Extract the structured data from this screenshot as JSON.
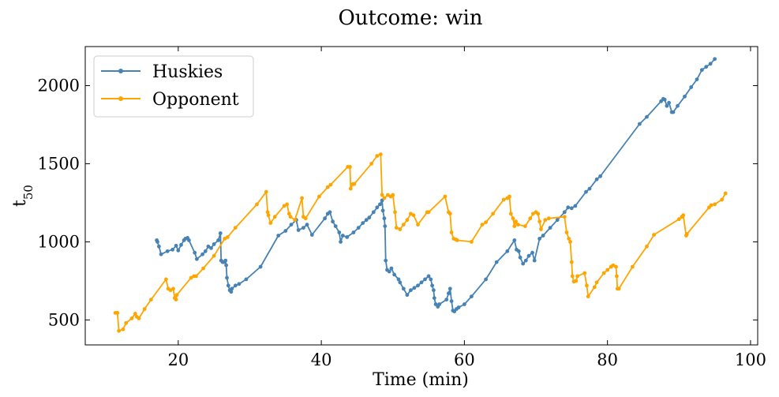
{
  "chart_data": {
    "type": "line",
    "title": "Outcome: win",
    "xlabel": "Time (min)",
    "ylabel_base": "t",
    "ylabel_sub": "50",
    "xlim": [
      7,
      101
    ],
    "ylim": [
      340,
      2250
    ],
    "xticks": [
      20,
      40,
      60,
      80,
      100
    ],
    "yticks": [
      500,
      1000,
      1500,
      2000
    ],
    "legend_position": "upper left",
    "series": [
      {
        "name": "Huskies",
        "color": "#4682b4",
        "points": [
          [
            17.0,
            1010
          ],
          [
            17.1,
            1000
          ],
          [
            17.3,
            970
          ],
          [
            17.6,
            920
          ],
          [
            18.5,
            940
          ],
          [
            19.2,
            950
          ],
          [
            19.7,
            975
          ],
          [
            20.0,
            945
          ],
          [
            20.4,
            980
          ],
          [
            20.8,
            1010
          ],
          [
            21.0,
            1020
          ],
          [
            21.3,
            1025
          ],
          [
            21.5,
            1010
          ],
          [
            22.3,
            930
          ],
          [
            22.6,
            890
          ],
          [
            23.4,
            920
          ],
          [
            23.8,
            940
          ],
          [
            24.2,
            970
          ],
          [
            24.6,
            960
          ],
          [
            25.0,
            985
          ],
          [
            25.6,
            1010
          ],
          [
            25.9,
            1055
          ],
          [
            26.0,
            880
          ],
          [
            26.2,
            870
          ],
          [
            26.4,
            870
          ],
          [
            26.6,
            880
          ],
          [
            26.7,
            850
          ],
          [
            26.8,
            770
          ],
          [
            27.0,
            720
          ],
          [
            27.2,
            690
          ],
          [
            27.4,
            680
          ],
          [
            27.5,
            700
          ],
          [
            28.0,
            720
          ],
          [
            28.5,
            730
          ],
          [
            29.5,
            760
          ],
          [
            31.5,
            840
          ],
          [
            34.0,
            1040
          ],
          [
            35.0,
            1070
          ],
          [
            35.8,
            1110
          ],
          [
            36.5,
            1140
          ],
          [
            36.8,
            1075
          ],
          [
            37.5,
            1090
          ],
          [
            38.0,
            1110
          ],
          [
            38.7,
            1045
          ],
          [
            40.5,
            1150
          ],
          [
            40.9,
            1180
          ],
          [
            41.2,
            1190
          ],
          [
            41.6,
            1130
          ],
          [
            42.0,
            1100
          ],
          [
            42.5,
            1060
          ],
          [
            42.7,
            1000
          ],
          [
            43.0,
            1040
          ],
          [
            43.6,
            1030
          ],
          [
            44.5,
            1060
          ],
          [
            45.2,
            1090
          ],
          [
            45.8,
            1120
          ],
          [
            46.3,
            1140
          ],
          [
            46.7,
            1155
          ],
          [
            47.3,
            1190
          ],
          [
            47.8,
            1220
          ],
          [
            48.2,
            1240
          ],
          [
            48.5,
            1265
          ],
          [
            48.6,
            1200
          ],
          [
            48.8,
            1150
          ],
          [
            48.9,
            1100
          ],
          [
            49.0,
            880
          ],
          [
            49.2,
            820
          ],
          [
            49.5,
            810
          ],
          [
            49.8,
            830
          ],
          [
            50.2,
            790
          ],
          [
            50.8,
            760
          ],
          [
            51.0,
            740
          ],
          [
            51.5,
            700
          ],
          [
            52.0,
            660
          ],
          [
            52.5,
            690
          ],
          [
            53.0,
            705
          ],
          [
            53.5,
            720
          ],
          [
            54.0,
            740
          ],
          [
            54.5,
            760
          ],
          [
            55.0,
            780
          ],
          [
            55.3,
            760
          ],
          [
            55.5,
            720
          ],
          [
            55.7,
            690
          ],
          [
            55.8,
            640
          ],
          [
            56.0,
            600
          ],
          [
            56.3,
            585
          ],
          [
            56.5,
            600
          ],
          [
            57.5,
            630
          ],
          [
            57.8,
            670
          ],
          [
            58.0,
            700
          ],
          [
            58.2,
            620
          ],
          [
            58.4,
            560
          ],
          [
            58.6,
            555
          ],
          [
            58.9,
            570
          ],
          [
            59.2,
            580
          ],
          [
            60.0,
            600
          ],
          [
            61.0,
            650
          ],
          [
            63.0,
            760
          ],
          [
            64.5,
            870
          ],
          [
            66.0,
            940
          ],
          [
            67.0,
            1010
          ],
          [
            67.3,
            950
          ],
          [
            67.6,
            940
          ],
          [
            67.8,
            900
          ],
          [
            68.2,
            860
          ],
          [
            68.6,
            880
          ],
          [
            69.0,
            910
          ],
          [
            69.5,
            930
          ],
          [
            69.8,
            880
          ],
          [
            70.5,
            1020
          ],
          [
            71.0,
            1040
          ],
          [
            72.0,
            1090
          ],
          [
            73.0,
            1140
          ],
          [
            74.0,
            1190
          ],
          [
            74.5,
            1220
          ],
          [
            75.0,
            1215
          ],
          [
            75.5,
            1230
          ],
          [
            77.0,
            1320
          ],
          [
            77.5,
            1340
          ],
          [
            78.5,
            1400
          ],
          [
            79.0,
            1420
          ],
          [
            84.5,
            1755
          ],
          [
            85.5,
            1800
          ],
          [
            87.5,
            1900
          ],
          [
            87.8,
            1915
          ],
          [
            88.0,
            1910
          ],
          [
            88.3,
            1870
          ],
          [
            88.6,
            1890
          ],
          [
            89.0,
            1830
          ],
          [
            89.2,
            1830
          ],
          [
            89.8,
            1870
          ],
          [
            90.8,
            1930
          ],
          [
            91.7,
            1990
          ],
          [
            92.5,
            2040
          ],
          [
            93.2,
            2100
          ],
          [
            93.8,
            2120
          ],
          [
            94.4,
            2140
          ],
          [
            95.0,
            2170
          ]
        ]
      },
      {
        "name": "Opponent",
        "color": "#ffa500",
        "points": [
          [
            11.2,
            545
          ],
          [
            11.5,
            545
          ],
          [
            11.7,
            430
          ],
          [
            12.3,
            440
          ],
          [
            12.7,
            480
          ],
          [
            13.5,
            510
          ],
          [
            14.0,
            540
          ],
          [
            14.2,
            520
          ],
          [
            14.5,
            510
          ],
          [
            15.3,
            570
          ],
          [
            16.2,
            630
          ],
          [
            18.3,
            760
          ],
          [
            18.6,
            700
          ],
          [
            18.9,
            690
          ],
          [
            19.3,
            700
          ],
          [
            19.5,
            640
          ],
          [
            19.7,
            630
          ],
          [
            19.8,
            660
          ],
          [
            21.8,
            770
          ],
          [
            22.2,
            780
          ],
          [
            22.5,
            780
          ],
          [
            23.5,
            830
          ],
          [
            25.0,
            910
          ],
          [
            26.5,
            1020
          ],
          [
            26.9,
            1030
          ],
          [
            28.0,
            1090
          ],
          [
            31.0,
            1240
          ],
          [
            32.3,
            1320
          ],
          [
            32.5,
            1190
          ],
          [
            32.6,
            1170
          ],
          [
            32.9,
            1120
          ],
          [
            33.5,
            1160
          ],
          [
            34.8,
            1230
          ],
          [
            35.2,
            1240
          ],
          [
            35.5,
            1180
          ],
          [
            35.7,
            1160
          ],
          [
            36.3,
            1140
          ],
          [
            37.3,
            1280
          ],
          [
            37.5,
            1160
          ],
          [
            37.8,
            1150
          ],
          [
            39.7,
            1290
          ],
          [
            40.9,
            1350
          ],
          [
            41.3,
            1365
          ],
          [
            43.7,
            1480
          ],
          [
            44.0,
            1480
          ],
          [
            44.1,
            1340
          ],
          [
            44.4,
            1370
          ],
          [
            44.6,
            1370
          ],
          [
            47.0,
            1500
          ],
          [
            47.8,
            1550
          ],
          [
            48.3,
            1560
          ],
          [
            48.5,
            1300
          ],
          [
            48.8,
            1280
          ],
          [
            49.3,
            1300
          ],
          [
            49.7,
            1290
          ],
          [
            50.0,
            1300
          ],
          [
            50.3,
            1190
          ],
          [
            50.5,
            1090
          ],
          [
            51.0,
            1080
          ],
          [
            51.5,
            1110
          ],
          [
            52.0,
            1140
          ],
          [
            52.5,
            1180
          ],
          [
            52.9,
            1170
          ],
          [
            53.5,
            1110
          ],
          [
            54.8,
            1190
          ],
          [
            55.0,
            1190
          ],
          [
            57.3,
            1290
          ],
          [
            57.8,
            1190
          ],
          [
            58.0,
            1180
          ],
          [
            58.2,
            1060
          ],
          [
            58.5,
            1020
          ],
          [
            58.8,
            1015
          ],
          [
            59.0,
            1010
          ],
          [
            61.0,
            1000
          ],
          [
            62.5,
            1110
          ],
          [
            63.0,
            1125
          ],
          [
            64.0,
            1180
          ],
          [
            65.5,
            1270
          ],
          [
            66.0,
            1280
          ],
          [
            66.3,
            1290
          ],
          [
            66.5,
            1180
          ],
          [
            66.8,
            1150
          ],
          [
            67.0,
            1100
          ],
          [
            67.2,
            1130
          ],
          [
            67.5,
            1110
          ],
          [
            68.5,
            1100
          ],
          [
            69.2,
            1150
          ],
          [
            69.6,
            1180
          ],
          [
            70.0,
            1190
          ],
          [
            70.3,
            1180
          ],
          [
            70.5,
            1130
          ],
          [
            70.7,
            1080
          ],
          [
            71.3,
            1140
          ],
          [
            71.8,
            1150
          ],
          [
            74.0,
            1160
          ],
          [
            74.3,
            1060
          ],
          [
            74.6,
            1020
          ],
          [
            74.8,
            1000
          ],
          [
            75.0,
            870
          ],
          [
            75.1,
            780
          ],
          [
            75.3,
            745
          ],
          [
            75.6,
            750
          ],
          [
            75.8,
            780
          ],
          [
            76.8,
            800
          ],
          [
            77.1,
            720
          ],
          [
            77.3,
            650
          ],
          [
            78.2,
            710
          ],
          [
            78.5,
            740
          ],
          [
            79.5,
            800
          ],
          [
            80.0,
            820
          ],
          [
            80.5,
            840
          ],
          [
            80.8,
            850
          ],
          [
            81.2,
            840
          ],
          [
            81.3,
            780
          ],
          [
            81.4,
            700
          ],
          [
            81.6,
            700
          ],
          [
            83.5,
            840
          ],
          [
            85.5,
            970
          ],
          [
            86.5,
            1045
          ],
          [
            90.0,
            1145
          ],
          [
            90.4,
            1160
          ],
          [
            90.6,
            1170
          ],
          [
            91.0,
            1040
          ],
          [
            91.1,
            1050
          ],
          [
            94.2,
            1220
          ],
          [
            94.5,
            1235
          ],
          [
            95.0,
            1240
          ],
          [
            96.0,
            1270
          ],
          [
            96.5,
            1310
          ]
        ]
      }
    ]
  }
}
